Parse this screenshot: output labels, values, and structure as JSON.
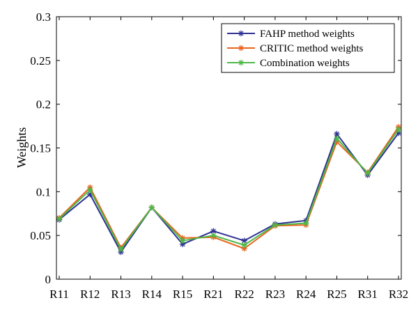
{
  "chart_data": {
    "type": "line",
    "title": "",
    "xlabel": "",
    "ylabel": "Weights",
    "ylim": [
      0,
      0.3
    ],
    "yticks": [
      "0",
      "0.05",
      "0.1",
      "0.15",
      "0.2",
      "0.25",
      "0.3"
    ],
    "grid": false,
    "legend_position": "top-right",
    "categories": [
      "R11",
      "R12",
      "R13",
      "R14",
      "R15",
      "R21",
      "R22",
      "R23",
      "R24",
      "R25",
      "R31",
      "R32"
    ],
    "series": [
      {
        "name": "FAHP method weights",
        "color": "#2e3192",
        "marker": "asterisk",
        "values": [
          0.068,
          0.097,
          0.031,
          0.082,
          0.04,
          0.055,
          0.044,
          0.063,
          0.067,
          0.166,
          0.119,
          0.167
        ]
      },
      {
        "name": "CRITIC method weights",
        "color": "#e8641e",
        "marker": "asterisk",
        "values": [
          0.07,
          0.105,
          0.036,
          0.082,
          0.047,
          0.048,
          0.035,
          0.061,
          0.062,
          0.157,
          0.122,
          0.174
        ]
      },
      {
        "name": "Combination weights",
        "color": "#4db848",
        "marker": "asterisk",
        "values": [
          0.069,
          0.102,
          0.034,
          0.082,
          0.044,
          0.05,
          0.039,
          0.062,
          0.064,
          0.161,
          0.121,
          0.171
        ]
      }
    ]
  }
}
